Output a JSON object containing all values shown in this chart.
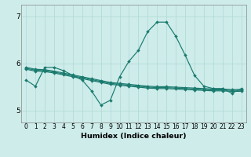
{
  "xlabel": "Humidex (Indice chaleur)",
  "background_color": "#cdecea",
  "grid_color": "#afd8d5",
  "line_color": "#1a7a6e",
  "x": [
    0,
    1,
    2,
    3,
    4,
    5,
    6,
    7,
    8,
    9,
    10,
    11,
    12,
    13,
    14,
    15,
    16,
    17,
    18,
    19,
    20,
    21,
    22,
    23
  ],
  "curve_peak": [
    5.65,
    5.52,
    5.92,
    5.92,
    5.85,
    5.75,
    5.65,
    5.42,
    5.12,
    5.22,
    5.72,
    6.05,
    6.28,
    6.68,
    6.88,
    6.88,
    6.58,
    6.18,
    5.75,
    5.52,
    5.47,
    5.47,
    5.37,
    5.47
  ],
  "curve_straight1": [
    5.92,
    5.88,
    5.87,
    5.84,
    5.8,
    5.76,
    5.72,
    5.68,
    5.64,
    5.6,
    5.58,
    5.56,
    5.54,
    5.52,
    5.51,
    5.51,
    5.5,
    5.49,
    5.48,
    5.47,
    5.46,
    5.46,
    5.45,
    5.45
  ],
  "curve_straight2": [
    5.9,
    5.86,
    5.85,
    5.82,
    5.78,
    5.74,
    5.7,
    5.66,
    5.62,
    5.58,
    5.56,
    5.54,
    5.52,
    5.5,
    5.49,
    5.49,
    5.48,
    5.47,
    5.46,
    5.45,
    5.44,
    5.44,
    5.43,
    5.43
  ],
  "curve_straight3": [
    5.88,
    5.84,
    5.83,
    5.8,
    5.76,
    5.72,
    5.68,
    5.64,
    5.6,
    5.56,
    5.54,
    5.52,
    5.5,
    5.48,
    5.47,
    5.47,
    5.46,
    5.45,
    5.44,
    5.43,
    5.42,
    5.42,
    5.41,
    5.41
  ],
  "ylim": [
    4.75,
    7.25
  ],
  "ytick_labels": [
    "5",
    "6",
    "7"
  ],
  "ytick_vals": [
    5.0,
    6.0,
    7.0
  ],
  "xticks": [
    0,
    1,
    2,
    3,
    4,
    5,
    6,
    7,
    8,
    9,
    10,
    11,
    12,
    13,
    14,
    15,
    16,
    17,
    18,
    19,
    20,
    21,
    22,
    23
  ]
}
